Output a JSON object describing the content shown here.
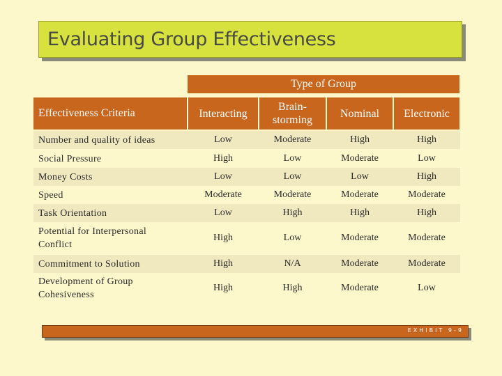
{
  "title": "Evaluating Group Effectiveness",
  "group_header": "Type of Group",
  "criteria_header": "Effectiveness Criteria",
  "columns": [
    "Interacting",
    "Brain-\nstorming",
    "Nominal",
    "Electronic"
  ],
  "rows": [
    {
      "criterion": "Number and quality of ideas",
      "values": [
        "Low",
        "Moderate",
        "High",
        "High"
      ]
    },
    {
      "criterion": "Social Pressure",
      "values": [
        "High",
        "Low",
        "Moderate",
        "Low"
      ]
    },
    {
      "criterion": "Money Costs",
      "values": [
        "Low",
        "Low",
        "Low",
        "High"
      ]
    },
    {
      "criterion": "Speed",
      "values": [
        "Moderate",
        "Moderate",
        "Moderate",
        "Moderate"
      ]
    },
    {
      "criterion": "Task Orientation",
      "values": [
        "Low",
        "High",
        "High",
        "High"
      ]
    },
    {
      "criterion": "Potential for Interpersonal Conflict",
      "values": [
        "High",
        "Low",
        "Moderate",
        "Moderate"
      ]
    },
    {
      "criterion": "Commitment to Solution",
      "values": [
        "High",
        "N/A",
        "Moderate",
        "Moderate"
      ]
    },
    {
      "criterion": "Development of Group Cohesiveness",
      "values": [
        "High",
        "High",
        "Moderate",
        "Low"
      ]
    }
  ],
  "exhibit_label": "EXHIBIT 9-9",
  "colors": {
    "accent": "#c8661e",
    "title_bg": "#d8e23e",
    "page_bg": "#fcf8cc",
    "row_shade": "#f0e8bf"
  }
}
